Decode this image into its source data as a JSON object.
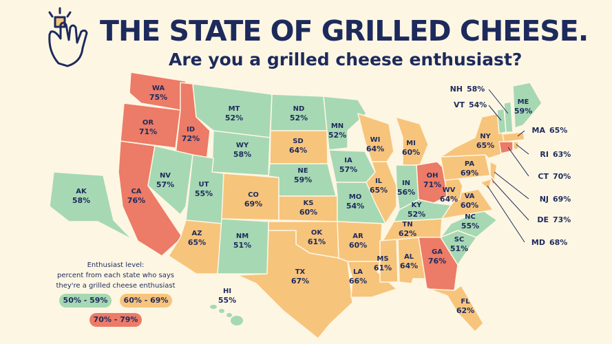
{
  "title": "THE STATE OF GRILLED CHEESE.",
  "subtitle": "Are you a grilled cheese enthusiast?",
  "legend": {
    "title": [
      "Enthusiast level:",
      "percent from each state who says",
      "they're a grilled cheese enthusiast"
    ],
    "bins": [
      {
        "label": "50% - 59%",
        "min": 50,
        "max": 59,
        "color": "#a6d8b3"
      },
      {
        "label": "60% - 69%",
        "min": 60,
        "max": 69,
        "color": "#f7c47c"
      },
      {
        "label": "70% - 79%",
        "min": 70,
        "max": 79,
        "color": "#ec7b67"
      }
    ]
  },
  "states": [
    {
      "abbr": "WA",
      "label": "75%",
      "value": 75
    },
    {
      "abbr": "OR",
      "label": "71%",
      "value": 71
    },
    {
      "abbr": "CA",
      "label": "76%",
      "value": 76
    },
    {
      "abbr": "ID",
      "label": "72%",
      "value": 72
    },
    {
      "abbr": "NV",
      "label": "57%",
      "value": 57
    },
    {
      "abbr": "MT",
      "label": "52%",
      "value": 52
    },
    {
      "abbr": "WY",
      "label": "58%",
      "value": 58
    },
    {
      "abbr": "UT",
      "label": "55%",
      "value": 55
    },
    {
      "abbr": "AZ",
      "label": "65%",
      "value": 65
    },
    {
      "abbr": "CO",
      "label": "69%",
      "value": 69
    },
    {
      "abbr": "NM",
      "label": "51%",
      "value": 51
    },
    {
      "abbr": "ND",
      "label": "52%",
      "value": 52
    },
    {
      "abbr": "SD",
      "label": "64%",
      "value": 64
    },
    {
      "abbr": "NE",
      "label": "59%",
      "value": 59
    },
    {
      "abbr": "KS",
      "label": "60%",
      "value": 60
    },
    {
      "abbr": "OK",
      "label": "61%",
      "value": 61
    },
    {
      "abbr": "TX",
      "label": "67%",
      "value": 67
    },
    {
      "abbr": "MN",
      "label": "52%",
      "value": 52
    },
    {
      "abbr": "IA",
      "label": "57%",
      "value": 57
    },
    {
      "abbr": "MO",
      "label": "54%",
      "value": 54
    },
    {
      "abbr": "AR",
      "label": "60%",
      "value": 60
    },
    {
      "abbr": "LA",
      "label": "66%",
      "value": 66
    },
    {
      "abbr": "WI",
      "label": "64%",
      "value": 64
    },
    {
      "abbr": "IL",
      "label": "65%",
      "value": 65
    },
    {
      "abbr": "MI",
      "label": "60%",
      "value": 60
    },
    {
      "abbr": "IN",
      "label": "56%",
      "value": 56
    },
    {
      "abbr": "OH",
      "label": "71%",
      "value": 71
    },
    {
      "abbr": "KY",
      "label": "52%",
      "value": 52
    },
    {
      "abbr": "TN",
      "label": "62%",
      "value": 62
    },
    {
      "abbr": "MS",
      "label": "61%",
      "value": 61
    },
    {
      "abbr": "AL",
      "label": "64%",
      "value": 64
    },
    {
      "abbr": "GA",
      "label": "76%",
      "value": 76
    },
    {
      "abbr": "FL",
      "label": "62%",
      "value": 62
    },
    {
      "abbr": "SC",
      "label": "51%",
      "value": 51
    },
    {
      "abbr": "NC",
      "label": "55%",
      "value": 55
    },
    {
      "abbr": "VA",
      "label": "60%",
      "value": 60
    },
    {
      "abbr": "WV",
      "label": "64%",
      "value": 64
    },
    {
      "abbr": "PA",
      "label": "69%",
      "value": 69
    },
    {
      "abbr": "NY",
      "label": "65%",
      "value": 65
    },
    {
      "abbr": "MD",
      "label": "68%",
      "value": 68
    },
    {
      "abbr": "DE",
      "label": "73%",
      "value": 73
    },
    {
      "abbr": "NJ",
      "label": "69%",
      "value": 69
    },
    {
      "abbr": "VT",
      "label": "54%",
      "value": 54
    },
    {
      "abbr": "NH",
      "label": "58%",
      "value": 58
    },
    {
      "abbr": "ME",
      "label": "59%",
      "value": 59
    },
    {
      "abbr": "MA",
      "label": "65%",
      "value": 65
    },
    {
      "abbr": "CT",
      "label": "70%",
      "value": 70
    },
    {
      "abbr": "RI",
      "label": "63%",
      "value": 63
    },
    {
      "abbr": "AK",
      "label": "58%",
      "value": 58
    },
    {
      "abbr": "HI",
      "label": "55%",
      "value": 55
    }
  ]
}
